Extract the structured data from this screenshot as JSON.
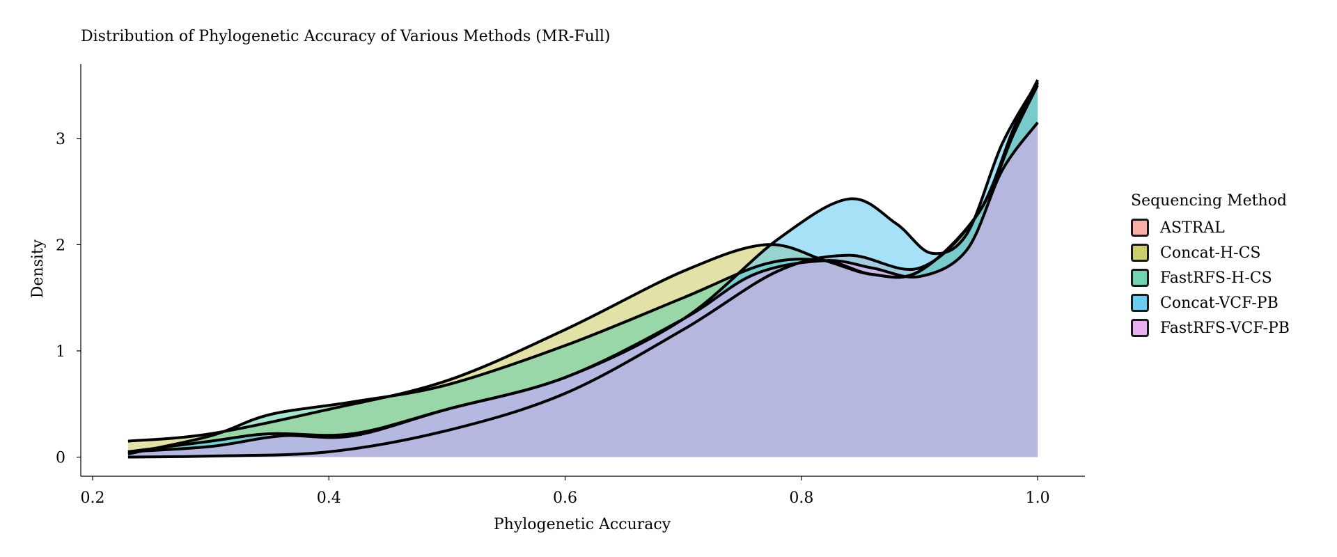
{
  "chart_data": {
    "type": "area",
    "title": "Distribution of Phylogenetic Accuracy of Various Methods (MR-Full)",
    "xlabel": "Phylogenetic Accuracy",
    "ylabel": "Density",
    "xlim": [
      0.19,
      1.04
    ],
    "ylim": [
      -0.18,
      3.7
    ],
    "xticks": [
      0.2,
      0.4,
      0.6,
      0.8,
      1.0
    ],
    "xtick_labels": [
      "0.2",
      "0.4",
      "0.6",
      "0.8",
      "1.0"
    ],
    "yticks": [
      0,
      1,
      2,
      3
    ],
    "ytick_labels": [
      "0",
      "1",
      "2",
      "3"
    ],
    "legend_title": "Sequencing Method",
    "legend_position": "right",
    "series": [
      {
        "name": "ASTRAL",
        "color": "#f8a8a0",
        "points": [
          [
            0.23,
            0.0
          ],
          [
            0.3,
            0.01
          ],
          [
            0.4,
            0.05
          ],
          [
            0.5,
            0.25
          ],
          [
            0.6,
            0.6
          ],
          [
            0.7,
            1.2
          ],
          [
            0.78,
            1.75
          ],
          [
            0.84,
            1.9
          ],
          [
            0.9,
            1.78
          ],
          [
            0.95,
            2.3
          ],
          [
            0.98,
            3.1
          ],
          [
            1.0,
            3.55
          ]
        ]
      },
      {
        "name": "Concat-H-CS",
        "color": "#c8c860",
        "points": [
          [
            0.23,
            0.15
          ],
          [
            0.3,
            0.22
          ],
          [
            0.4,
            0.45
          ],
          [
            0.5,
            0.72
          ],
          [
            0.6,
            1.2
          ],
          [
            0.7,
            1.75
          ],
          [
            0.77,
            2.0
          ],
          [
            0.82,
            1.85
          ],
          [
            0.86,
            1.72
          ],
          [
            0.9,
            1.75
          ],
          [
            0.95,
            2.3
          ],
          [
            0.98,
            3.1
          ],
          [
            1.0,
            3.52
          ]
        ]
      },
      {
        "name": "FastRFS-H-CS",
        "color": "#60d0a8",
        "points": [
          [
            0.23,
            0.03
          ],
          [
            0.3,
            0.2
          ],
          [
            0.35,
            0.4
          ],
          [
            0.42,
            0.52
          ],
          [
            0.5,
            0.68
          ],
          [
            0.6,
            1.05
          ],
          [
            0.7,
            1.5
          ],
          [
            0.77,
            1.82
          ],
          [
            0.82,
            1.85
          ],
          [
            0.86,
            1.72
          ],
          [
            0.9,
            1.75
          ],
          [
            0.95,
            2.3
          ],
          [
            0.98,
            3.05
          ],
          [
            1.0,
            3.5
          ]
        ]
      },
      {
        "name": "Concat-VCF-PB",
        "color": "#5cc8f0",
        "points": [
          [
            0.23,
            0.05
          ],
          [
            0.3,
            0.15
          ],
          [
            0.35,
            0.22
          ],
          [
            0.42,
            0.22
          ],
          [
            0.5,
            0.45
          ],
          [
            0.6,
            0.75
          ],
          [
            0.7,
            1.3
          ],
          [
            0.78,
            2.05
          ],
          [
            0.84,
            2.43
          ],
          [
            0.88,
            2.2
          ],
          [
            0.91,
            1.92
          ],
          [
            0.94,
            2.1
          ],
          [
            0.97,
            2.95
          ],
          [
            1.0,
            3.53
          ]
        ]
      },
      {
        "name": "FastRFS-VCF-PB",
        "color": "#e8a8f0",
        "points": [
          [
            0.23,
            0.05
          ],
          [
            0.3,
            0.1
          ],
          [
            0.36,
            0.2
          ],
          [
            0.42,
            0.2
          ],
          [
            0.5,
            0.45
          ],
          [
            0.6,
            0.75
          ],
          [
            0.7,
            1.3
          ],
          [
            0.76,
            1.72
          ],
          [
            0.82,
            1.85
          ],
          [
            0.86,
            1.78
          ],
          [
            0.9,
            1.7
          ],
          [
            0.94,
            1.95
          ],
          [
            0.97,
            2.7
          ],
          [
            1.0,
            3.15
          ]
        ]
      }
    ]
  }
}
